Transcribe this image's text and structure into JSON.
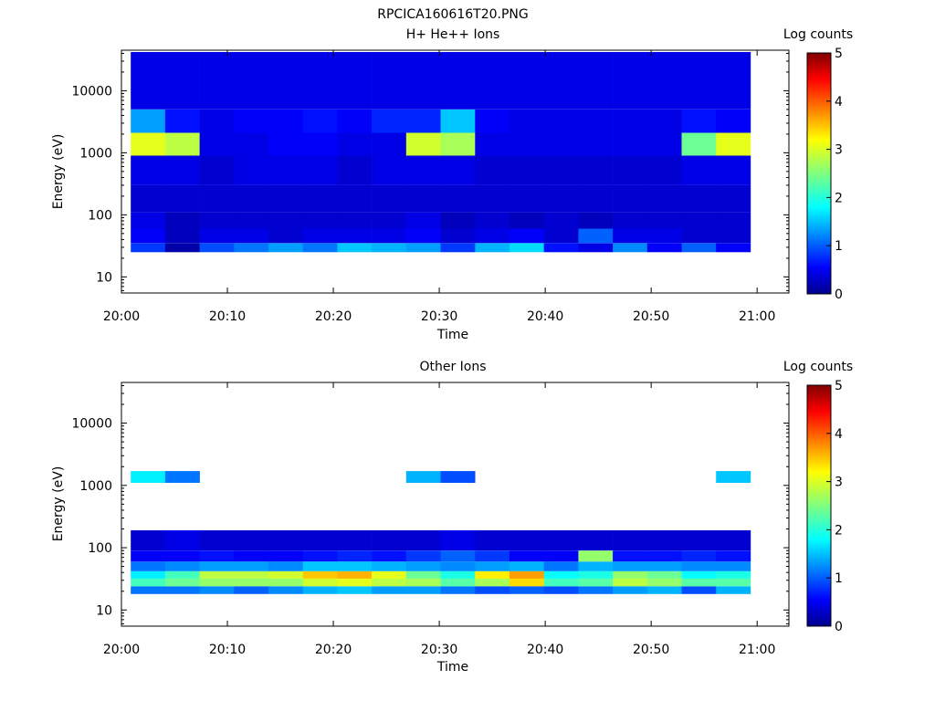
{
  "title": "RPCICA160616T20.PNG",
  "chart_data": [
    {
      "type": "heatmap",
      "title": "H+ He++ Ions",
      "xlabel": "Time",
      "ylabel": "Energy (eV)",
      "colorbar_label": "Log counts",
      "x_ticks": [
        "20:00",
        "20:10",
        "20:20",
        "20:30",
        "20:40",
        "20:50",
        "21:00"
      ],
      "y_ticks": [
        "10",
        "100",
        "1000",
        "10000"
      ],
      "colorbar_ticks": [
        "0",
        "1",
        "2",
        "3",
        "4",
        "5"
      ],
      "xlim": [
        "20:00",
        "21:03"
      ],
      "ylim": [
        5.5,
        45000
      ],
      "yscale": "log",
      "clim": [
        0,
        5
      ],
      "time_bins": [
        "20:02:30",
        "20:05:45",
        "20:09:00",
        "20:12:15",
        "20:15:30",
        "20:18:45",
        "20:22:00",
        "20:25:15",
        "20:28:30",
        "20:31:45",
        "20:35:00",
        "20:38:15",
        "20:41:30",
        "20:44:45",
        "20:48:00",
        "20:51:15",
        "20:54:30",
        "20:57:45"
      ],
      "bands": [
        {
          "e": [
            25,
            35
          ],
          "v": [
            0.9,
            0.2,
            1.0,
            1.2,
            1.4,
            1.2,
            1.6,
            1.5,
            1.4,
            0.9,
            1.5,
            1.7,
            0.7,
            0.5,
            1.3,
            0.6,
            1.1,
            0.6
          ]
        },
        {
          "e": [
            35,
            60
          ],
          "v": [
            0.6,
            0.3,
            0.5,
            0.5,
            0.4,
            0.5,
            0.5,
            0.5,
            0.6,
            0.4,
            0.5,
            0.6,
            0.4,
            1.1,
            0.5,
            0.5,
            0.4,
            0.4
          ]
        },
        {
          "e": [
            60,
            110
          ],
          "v": [
            0.5,
            0.3,
            0.4,
            0.4,
            0.4,
            0.4,
            0.4,
            0.4,
            0.5,
            0.3,
            0.4,
            0.3,
            0.4,
            0.3,
            0.4,
            0.4,
            0.4,
            0.4
          ]
        },
        {
          "e": [
            110,
            300
          ],
          "v": [
            0.4,
            0.4,
            0.4,
            0.4,
            0.4,
            0.4,
            0.4,
            0.4,
            0.4,
            0.4,
            0.4,
            0.4,
            0.4,
            0.4,
            0.4,
            0.4,
            0.4,
            0.4
          ]
        },
        {
          "e": [
            300,
            900
          ],
          "v": [
            0.5,
            0.5,
            0.4,
            0.5,
            0.5,
            0.5,
            0.4,
            0.5,
            0.5,
            0.5,
            0.4,
            0.4,
            0.4,
            0.4,
            0.4,
            0.4,
            0.5,
            0.5
          ]
        },
        {
          "e": [
            900,
            2100
          ],
          "v": [
            3.0,
            2.8,
            0.5,
            0.5,
            0.6,
            0.6,
            0.5,
            0.5,
            2.9,
            2.7,
            0.5,
            0.5,
            0.5,
            0.5,
            0.5,
            0.5,
            2.4,
            3.0
          ]
        },
        {
          "e": [
            2100,
            5000
          ],
          "v": [
            1.4,
            0.7,
            0.5,
            0.6,
            0.6,
            0.7,
            0.6,
            0.8,
            0.8,
            1.6,
            0.6,
            0.5,
            0.5,
            0.5,
            0.5,
            0.5,
            0.7,
            0.6
          ]
        },
        {
          "e": [
            5000,
            42000
          ],
          "v": [
            0.5,
            0.5,
            0.5,
            0.5,
            0.5,
            0.5,
            0.5,
            0.5,
            0.5,
            0.5,
            0.5,
            0.5,
            0.5,
            0.5,
            0.5,
            0.5,
            0.5,
            0.5
          ]
        }
      ]
    },
    {
      "type": "heatmap",
      "title": "Other Ions",
      "xlabel": "Time",
      "ylabel": "Energy (eV)",
      "colorbar_label": "Log counts",
      "x_ticks": [
        "20:00",
        "20:10",
        "20:20",
        "20:30",
        "20:40",
        "20:50",
        "21:00"
      ],
      "y_ticks": [
        "10",
        "100",
        "1000",
        "10000"
      ],
      "colorbar_ticks": [
        "0",
        "1",
        "2",
        "3",
        "4",
        "5"
      ],
      "xlim": [
        "20:00",
        "21:03"
      ],
      "ylim": [
        5.5,
        45000
      ],
      "yscale": "log",
      "clim": [
        0,
        5
      ],
      "time_bins": [
        "20:02:30",
        "20:05:45",
        "20:09:00",
        "20:12:15",
        "20:15:30",
        "20:18:45",
        "20:22:00",
        "20:25:15",
        "20:28:30",
        "20:31:45",
        "20:35:00",
        "20:38:15",
        "20:41:30",
        "20:44:45",
        "20:48:00",
        "20:51:15",
        "20:54:30",
        "20:57:45"
      ],
      "bands": [
        {
          "e": [
            18,
            24
          ],
          "v": [
            1.2,
            1.2,
            1.3,
            1.1,
            1.3,
            1.5,
            1.6,
            1.4,
            1.4,
            1.2,
            1.0,
            1.1,
            1.0,
            1.2,
            1.4,
            1.5,
            1.0,
            1.5
          ]
        },
        {
          "e": [
            24,
            32
          ],
          "v": [
            2.2,
            2.4,
            2.6,
            2.6,
            2.6,
            2.9,
            3.0,
            2.8,
            2.7,
            2.3,
            2.7,
            3.3,
            2.2,
            2.3,
            2.8,
            2.6,
            2.3,
            2.3
          ]
        },
        {
          "e": [
            32,
            42
          ],
          "v": [
            1.8,
            2.2,
            2.8,
            2.8,
            2.9,
            3.4,
            3.5,
            3.0,
            2.4,
            2.0,
            3.2,
            3.6,
            1.9,
            2.0,
            2.6,
            2.4,
            1.9,
            2.0
          ]
        },
        {
          "e": [
            42,
            60
          ],
          "v": [
            1.2,
            1.3,
            1.4,
            1.4,
            1.3,
            1.6,
            1.6,
            1.5,
            1.4,
            1.3,
            1.4,
            1.5,
            1.2,
            1.5,
            1.4,
            1.4,
            1.3,
            1.3
          ]
        },
        {
          "e": [
            60,
            90
          ],
          "v": [
            0.6,
            0.6,
            0.7,
            0.6,
            0.6,
            0.7,
            0.8,
            0.7,
            0.9,
            1.1,
            0.9,
            0.6,
            0.6,
            2.6,
            0.7,
            0.7,
            0.8,
            0.7
          ]
        },
        {
          "e": [
            90,
            190
          ],
          "v": [
            0.4,
            0.5,
            0.4,
            0.4,
            0.4,
            0.4,
            0.4,
            0.4,
            0.4,
            0.5,
            0.4,
            0.4,
            0.4,
            0.4,
            0.4,
            0.4,
            0.4,
            0.4
          ]
        },
        {
          "e": [
            1100,
            1700
          ],
          "v": [
            1.8,
            1.2,
            0,
            0,
            0,
            0,
            0,
            0,
            1.5,
            1.0,
            0,
            0,
            0,
            0,
            0,
            0,
            0,
            1.6
          ]
        }
      ]
    }
  ]
}
